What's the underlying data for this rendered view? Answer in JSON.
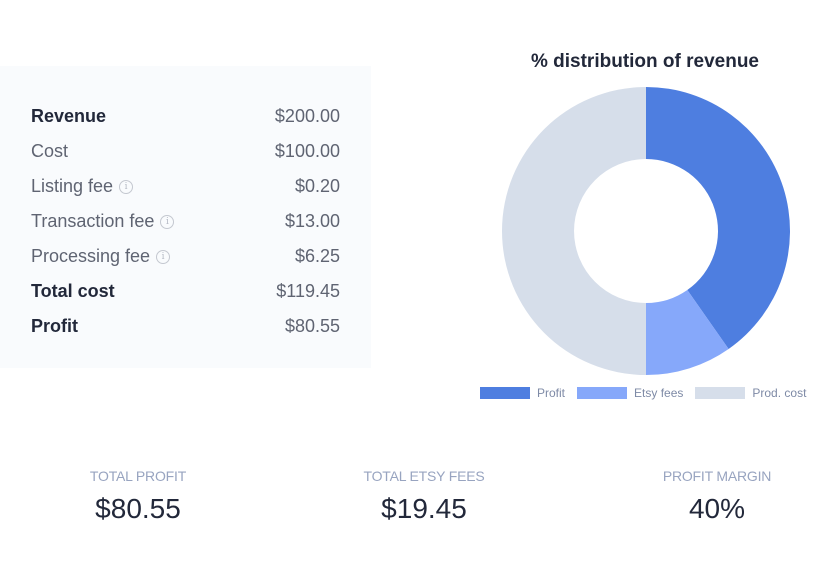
{
  "breakdown": {
    "rows": [
      {
        "label": "Revenue",
        "value": "$200.00",
        "bold": true,
        "info": false
      },
      {
        "label": "Cost",
        "value": "$100.00",
        "bold": false,
        "info": false
      },
      {
        "label": "Listing fee",
        "value": "$0.20",
        "bold": false,
        "info": true
      },
      {
        "label": "Transaction fee",
        "value": "$13.00",
        "bold": false,
        "info": true
      },
      {
        "label": "Processing fee",
        "value": "$6.25",
        "bold": false,
        "info": true
      },
      {
        "label": "Total cost",
        "value": "$119.45",
        "bold": true,
        "info": false
      },
      {
        "label": "Profit",
        "value": "$80.55",
        "bold": true,
        "info": false
      }
    ],
    "info_icon": "info-circle-icon",
    "info_glyph": "i"
  },
  "chart": {
    "title": "% distribution of revenue"
  },
  "chart_data": {
    "type": "pie",
    "title": "% distribution of revenue",
    "donut": true,
    "categories": [
      "Profit",
      "Etsy fees",
      "Prod. cost"
    ],
    "values": [
      80.55,
      19.45,
      100.0
    ],
    "percentages": [
      40.275,
      9.725,
      50.0
    ],
    "colors": [
      "#4e7ee0",
      "#86a8fa",
      "#d6deea"
    ],
    "legend_position": "bottom"
  },
  "summary": {
    "total_profit": {
      "label": "TOTAL PROFIT",
      "value": "$80.55"
    },
    "total_etsy_fees": {
      "label": "TOTAL ETSY FEES",
      "value": "$19.45"
    },
    "profit_margin": {
      "label": "PROFIT MARGIN",
      "value": "40%"
    }
  }
}
